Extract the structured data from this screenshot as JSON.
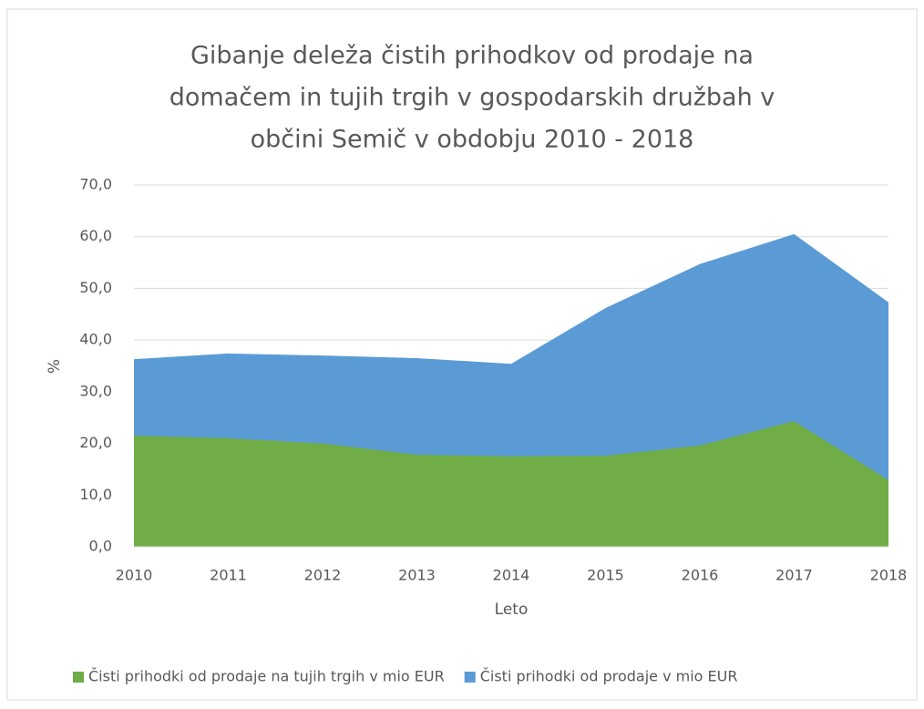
{
  "chart_data": {
    "type": "area",
    "stacked": false,
    "title": [
      "Gibanje deleža čistih prihodkov od prodaje na",
      "domačem in tujih trgih v gospodarskih družbah v",
      "občini Semič v obdobju 2010 - 2018"
    ],
    "x_label": "Leto",
    "y_label": "%",
    "categories": [
      "2010",
      "2011",
      "2012",
      "2013",
      "2014",
      "2015",
      "2016",
      "2017",
      "2018"
    ],
    "series": [
      {
        "name": "Čisti prihodki od prodaje na tujih trgih v mio EUR",
        "color": "#70ad47",
        "values": [
          21.5,
          21.0,
          20.0,
          17.8,
          17.5,
          17.6,
          19.6,
          24.3,
          12.9
        ]
      },
      {
        "name": "Čisti prihodki od prodaje v mio EUR",
        "color": "#5b9bd5",
        "values": [
          36.3,
          37.4,
          37.0,
          36.5,
          35.4,
          46.2,
          54.7,
          60.5,
          47.3
        ]
      }
    ],
    "ylim": [
      0,
      70
    ],
    "yticks": [
      {
        "value": 0,
        "label": "0,0"
      },
      {
        "value": 10,
        "label": "10,0"
      },
      {
        "value": 20,
        "label": "20,0"
      },
      {
        "value": 30,
        "label": "30,0"
      },
      {
        "value": 40,
        "label": "40,0"
      },
      {
        "value": 50,
        "label": "50,0"
      },
      {
        "value": 60,
        "label": "60,0"
      },
      {
        "value": 70,
        "label": "70,0"
      }
    ],
    "grid": true,
    "legend": "bottom"
  }
}
